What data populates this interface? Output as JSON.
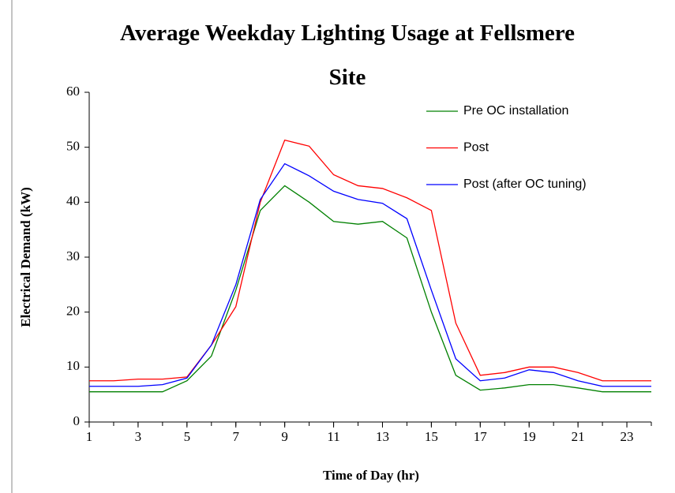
{
  "chart_data": {
    "type": "line",
    "title": "Average Weekday Lighting Usage at Fellsmere Site",
    "x_label": "Time of Day (hr)",
    "y_label": "Electrical Demand (kW)",
    "x": [
      1,
      2,
      3,
      4,
      5,
      6,
      7,
      8,
      9,
      10,
      11,
      12,
      13,
      14,
      15,
      16,
      17,
      18,
      19,
      20,
      21,
      22,
      23,
      24
    ],
    "series": [
      {
        "name": "Pre OC installation",
        "color": "#008000",
        "values": [
          5.5,
          5.5,
          5.5,
          5.5,
          7.5,
          12,
          24,
          38.5,
          43,
          40,
          36.5,
          36,
          36.5,
          33.5,
          20,
          8.5,
          5.8,
          6.2,
          6.8,
          6.8,
          6.2,
          5.5,
          5.5,
          5.5
        ]
      },
      {
        "name": "Post",
        "color": "#ff0000",
        "values": [
          7.5,
          7.5,
          7.8,
          7.8,
          8.2,
          14,
          21,
          40,
          51.3,
          50.2,
          45,
          43,
          42.5,
          40.8,
          38.5,
          18,
          8.5,
          9,
          10,
          10,
          9,
          7.5,
          7.5,
          7.5
        ]
      },
      {
        "name": "Post (after OC tuning)",
        "color": "#0000ff",
        "values": [
          6.5,
          6.5,
          6.5,
          6.8,
          8,
          14,
          25,
          40.5,
          47,
          44.8,
          42,
          40.5,
          39.8,
          37,
          24,
          11.5,
          7.5,
          8,
          9.5,
          9,
          7.5,
          6.5,
          6.5,
          6.5
        ]
      }
    ],
    "xlim": [
      1,
      24
    ],
    "xticks": [
      1,
      3,
      5,
      7,
      9,
      11,
      13,
      15,
      17,
      19,
      21,
      23
    ],
    "ylim": [
      0,
      60
    ],
    "yticks": [
      0,
      10,
      20,
      30,
      40,
      50,
      60
    ],
    "grid": false,
    "legend": "upper right"
  }
}
